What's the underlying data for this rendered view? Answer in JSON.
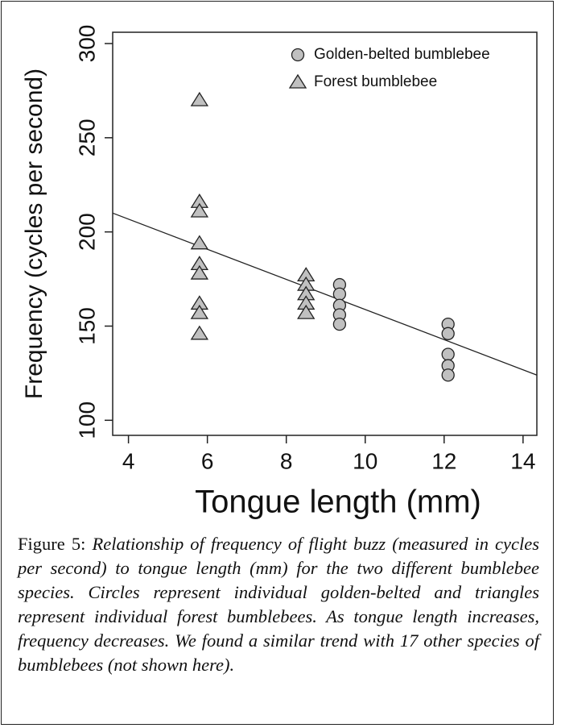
{
  "chart_data": {
    "type": "scatter",
    "x_label": "Tongue length (mm)",
    "y_label": "Frequency (cycles per second)",
    "xlim": [
      3.6,
      14.35
    ],
    "xticks": [
      4,
      6,
      8,
      10,
      12,
      14
    ],
    "ylim": [
      92,
      306
    ],
    "yticks": [
      100,
      150,
      200,
      250,
      300
    ],
    "legend": "upper right",
    "series": [
      {
        "name": "Golden-belted bumblebee",
        "marker": "circle",
        "color": "#c0c0c0",
        "x": [
          9.35,
          9.35,
          9.35,
          9.35,
          9.35,
          12.1,
          12.1,
          12.1,
          12.1,
          12.1
        ],
        "values": [
          172,
          167,
          161,
          156,
          151,
          151,
          146,
          135,
          129,
          124
        ]
      },
      {
        "name": "Forest bumblebee",
        "marker": "triangle",
        "color": "#c0c0c0",
        "x": [
          5.8,
          5.8,
          5.8,
          5.8,
          5.8,
          5.8,
          5.8,
          5.8,
          5.8,
          8.5,
          8.5,
          8.5,
          8.5,
          8.5
        ],
        "values": [
          270,
          216,
          211,
          194,
          183,
          178,
          162,
          157,
          146,
          177,
          172,
          167,
          162,
          157
        ]
      }
    ],
    "fit_line": {
      "x": [
        3.6,
        14.35
      ],
      "values": [
        210,
        124
      ]
    }
  },
  "caption": {
    "label": "Figure 5:",
    "text": "Relationship of frequency of flight buzz (measured in cycles per second) to tongue length (mm) for the two different bumblebee species. Circles represent individual golden-belted and triangles represent individual forest bumblebees. As tongue length increases, frequency decreases. We found a similar trend with 17 other species of bumblebees (not shown here)."
  }
}
